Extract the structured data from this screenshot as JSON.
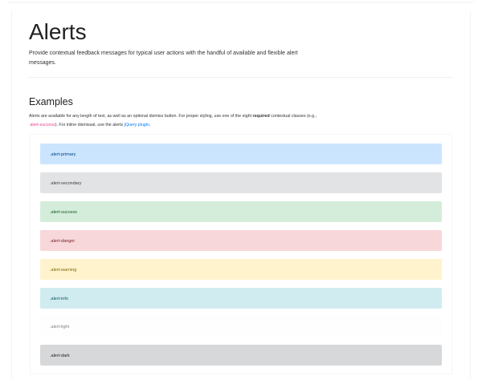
{
  "title": "Alerts",
  "lead": "Provide contextual feedback messages for typical user actions with the handful of available and flexible alert messages.",
  "examples": {
    "heading": "Examples",
    "desc_1": "Alerts are available for any length of text, as well as an optional dismiss button. For proper styling, use one of the eight ",
    "desc_bold": "required",
    "desc_2": " contextual classes (e.g., ",
    "desc_code": ".alert-success",
    "desc_3": "). For inline dismissal, use the alerts ",
    "desc_link": "jQuery plugin",
    "desc_4": "."
  },
  "alerts": [
    {
      "label": ".alert-primary",
      "bg": "#cce5ff",
      "fg": "#004085"
    },
    {
      "label": ".alert-secondary",
      "bg": "#e2e3e5",
      "fg": "#383d41"
    },
    {
      "label": ".alert-success",
      "bg": "#d4edda",
      "fg": "#155724"
    },
    {
      "label": ".alert-danger",
      "bg": "#f8d7da",
      "fg": "#721c24"
    },
    {
      "label": ".alert-warning",
      "bg": "#fff3cd",
      "fg": "#856404"
    },
    {
      "label": ".alert-info",
      "bg": "#d1ecf1",
      "fg": "#0c5460"
    },
    {
      "label": ".alert-light",
      "bg": "#fefefe",
      "fg": "#818182"
    },
    {
      "label": ".alert-dark",
      "bg": "#d6d8d9",
      "fg": "#1b1e21"
    }
  ]
}
